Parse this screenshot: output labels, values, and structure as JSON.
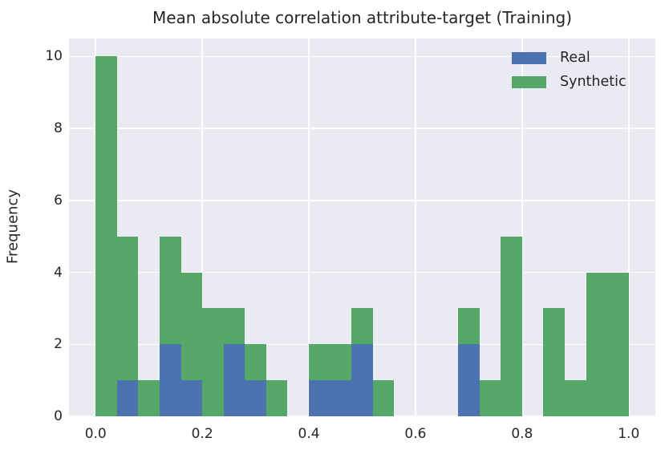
{
  "chart_data": {
    "type": "bar",
    "subtype": "stacked-histogram",
    "title": "Mean absolute correlation attribute-target (Training)",
    "xlabel": "",
    "ylabel": "Frequency",
    "stacked": true,
    "bin_width": 0.04,
    "bin_edges": [
      0.0,
      0.04,
      0.08,
      0.12,
      0.16,
      0.2,
      0.24,
      0.28,
      0.32,
      0.36,
      0.4,
      0.44,
      0.48,
      0.52,
      0.56,
      0.6,
      0.64,
      0.68,
      0.72,
      0.76,
      0.8,
      0.84,
      0.88,
      0.92,
      0.96,
      1.0
    ],
    "series": [
      {
        "name": "Real",
        "color": "#4c72b0",
        "values": [
          0,
          1,
          0,
          2,
          1,
          0,
          2,
          1,
          0,
          0,
          1,
          1,
          2,
          0,
          0,
          0,
          0,
          2,
          0,
          0,
          0,
          0,
          0,
          0,
          0
        ]
      },
      {
        "name": "Synthetic",
        "color": "#55a868",
        "values": [
          10,
          4,
          1,
          3,
          3,
          3,
          1,
          1,
          1,
          0,
          1,
          1,
          1,
          1,
          0,
          0,
          0,
          1,
          1,
          5,
          0,
          3,
          1,
          4,
          4
        ]
      }
    ],
    "xlim": [
      -0.05,
      1.05
    ],
    "ylim": [
      0,
      10.5
    ],
    "xticks": {
      "values": [
        0.0,
        0.2,
        0.4,
        0.6,
        0.8,
        1.0
      ],
      "labels": [
        "0.0",
        "0.2",
        "0.4",
        "0.6",
        "0.8",
        "1.0"
      ]
    },
    "yticks": {
      "values": [
        0,
        2,
        4,
        6,
        8,
        10
      ],
      "labels": [
        "0",
        "2",
        "4",
        "6",
        "8",
        "10"
      ]
    },
    "legend": {
      "position": "upper-right",
      "grid": "on"
    },
    "colors": {
      "figure_background": "#ffffff",
      "axes_background": "#eaeaf2",
      "grid": "#ffffff",
      "text": "#262626"
    }
  }
}
